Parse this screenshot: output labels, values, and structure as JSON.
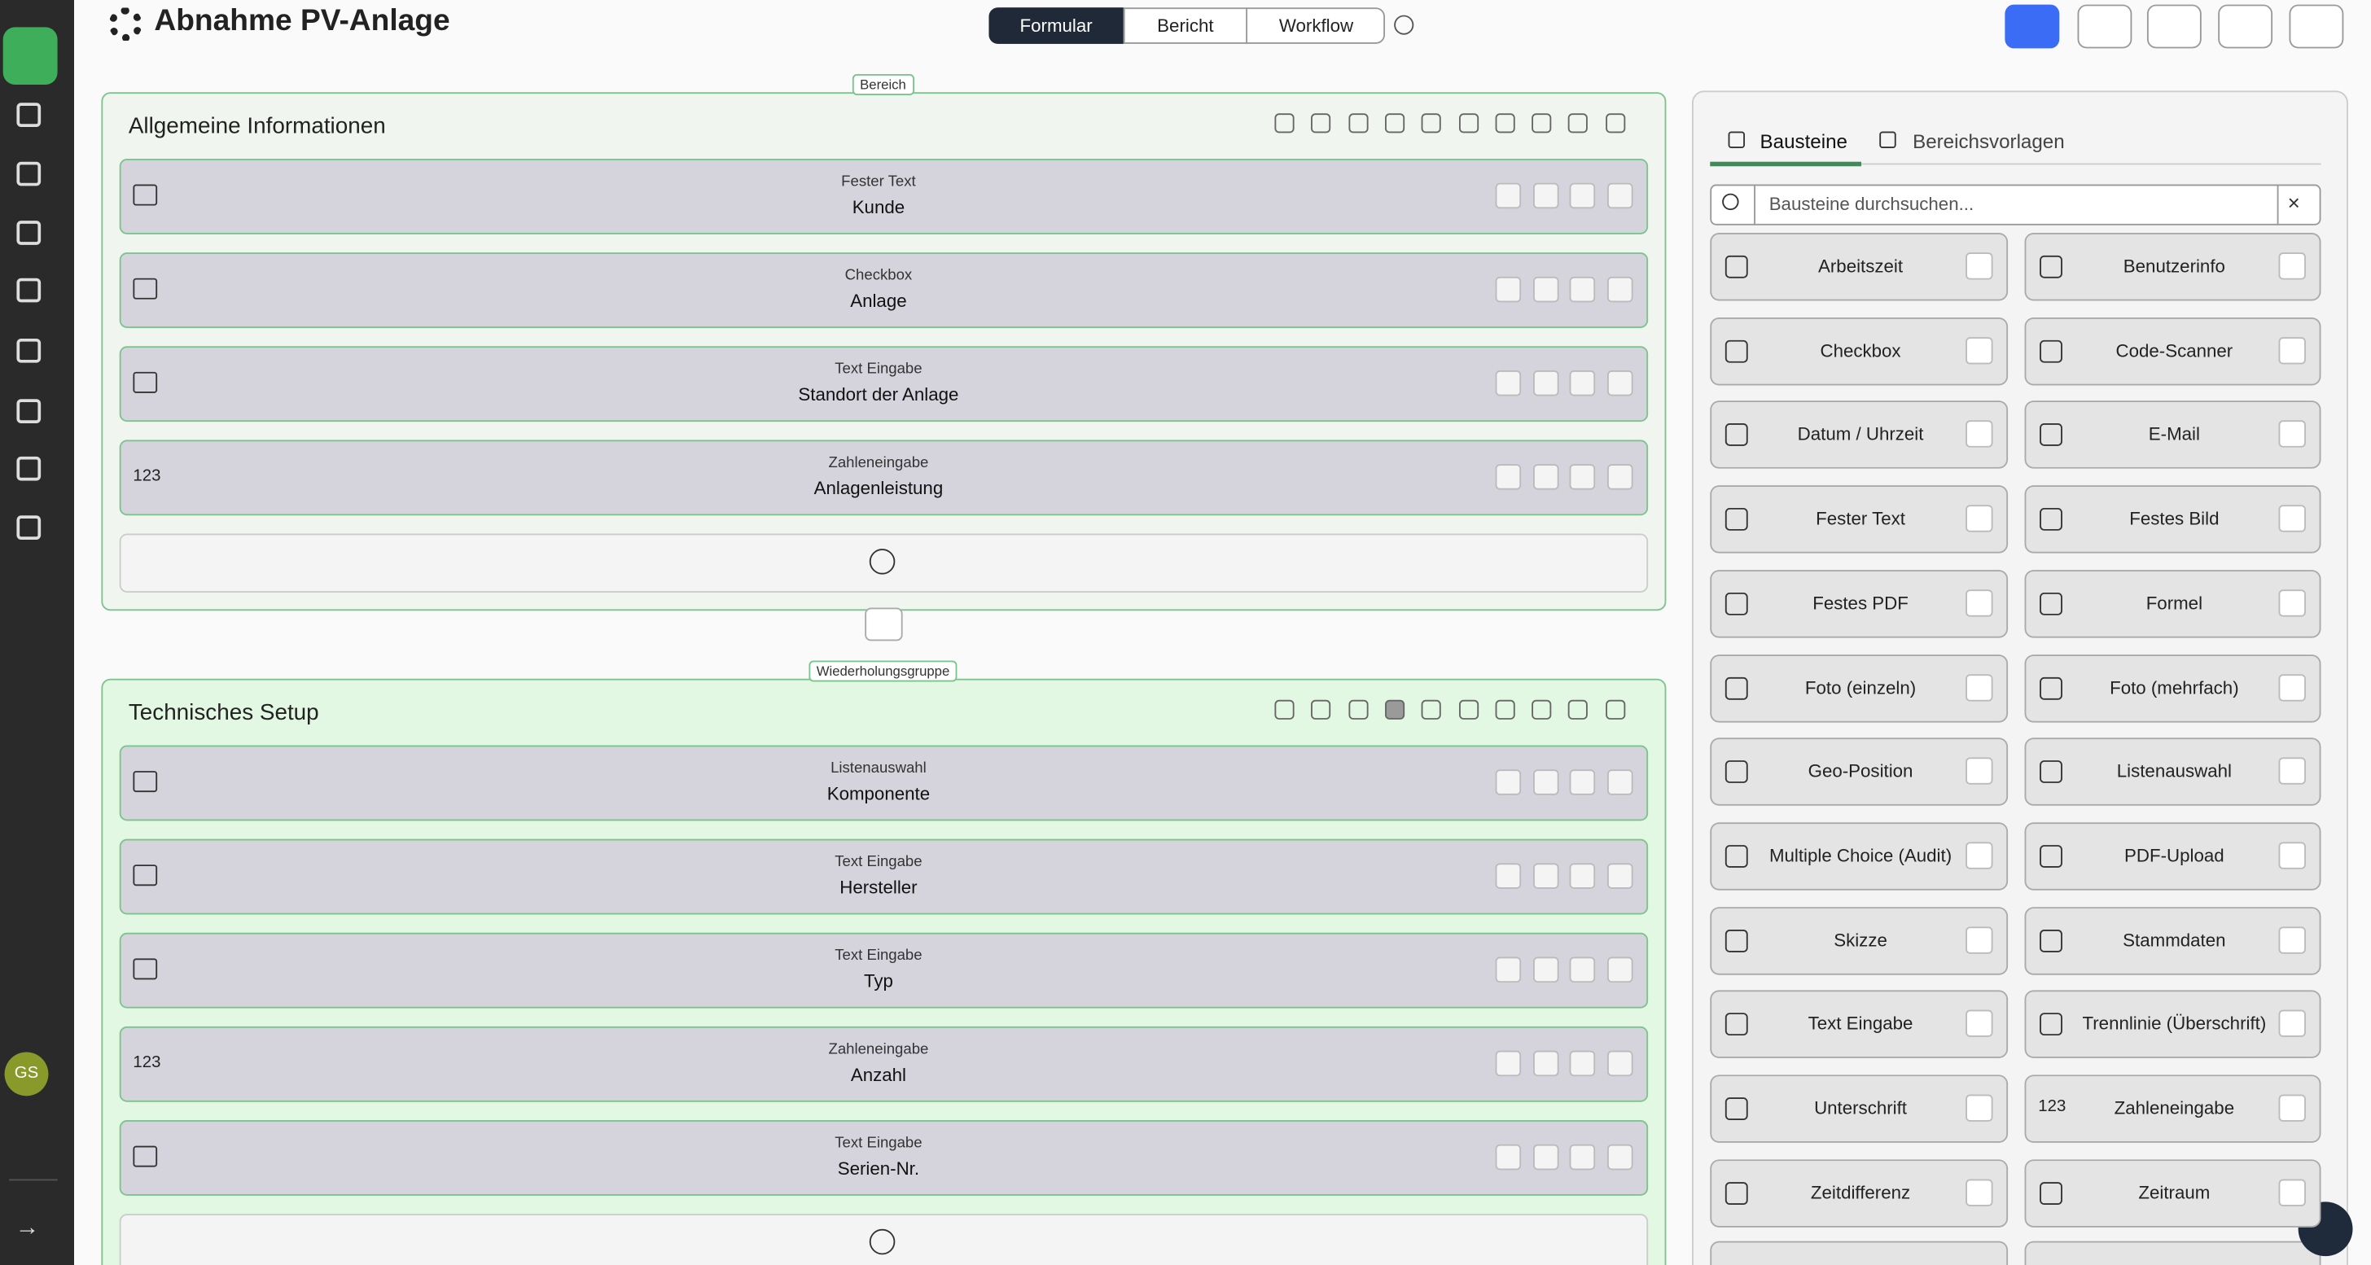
{
  "header": {
    "title": "Abnahme PV-Anlage",
    "tabs": [
      "Formular",
      "Bericht",
      "Workflow"
    ]
  },
  "sections": [
    {
      "badge": "Bereich",
      "title": "Allgemeine Informationen",
      "fields": [
        {
          "type": "Fester Text",
          "label": "Kunde"
        },
        {
          "type": "Checkbox",
          "label": "Anlage"
        },
        {
          "type": "Text Eingabe",
          "label": "Standort der Anlage"
        },
        {
          "type": "Zahleneingabe",
          "label": "Anlagenleistung",
          "icon": "123"
        }
      ]
    },
    {
      "badge": "Wiederholungsgruppe",
      "title": "Technisches Setup",
      "fields": [
        {
          "type": "Listenauswahl",
          "label": "Komponente"
        },
        {
          "type": "Text Eingabe",
          "label": "Hersteller"
        },
        {
          "type": "Text Eingabe",
          "label": "Typ"
        },
        {
          "type": "Zahleneingabe",
          "label": "Anzahl",
          "icon": "123"
        },
        {
          "type": "Text Eingabe",
          "label": "Serien-Nr."
        }
      ]
    }
  ],
  "sidebar": {
    "tabs": [
      "Bausteine",
      "Bereichsvorlagen"
    ],
    "search_placeholder": "Bausteine durchsuchen...",
    "blocks": [
      "Arbeitszeit",
      "Benutzerinfo",
      "Checkbox",
      "Code-Scanner",
      "Datum / Uhrzeit",
      "E-Mail",
      "Fester Text",
      "Festes Bild",
      "Festes PDF",
      "Formel",
      "Foto (einzeln)",
      "Foto (mehrfach)",
      "Geo-Position",
      "Listenauswahl",
      "Multiple Choice (Audit)",
      "PDF-Upload",
      "Skizze",
      "Stammdaten",
      "Text Eingabe",
      "Trennlinie (Überschrift)",
      "Unterschrift",
      "Zahleneingabe",
      "Zeitdifferenz",
      "Zeitraum"
    ],
    "zahl_icon": "123"
  },
  "user": {
    "initials": "GS"
  }
}
